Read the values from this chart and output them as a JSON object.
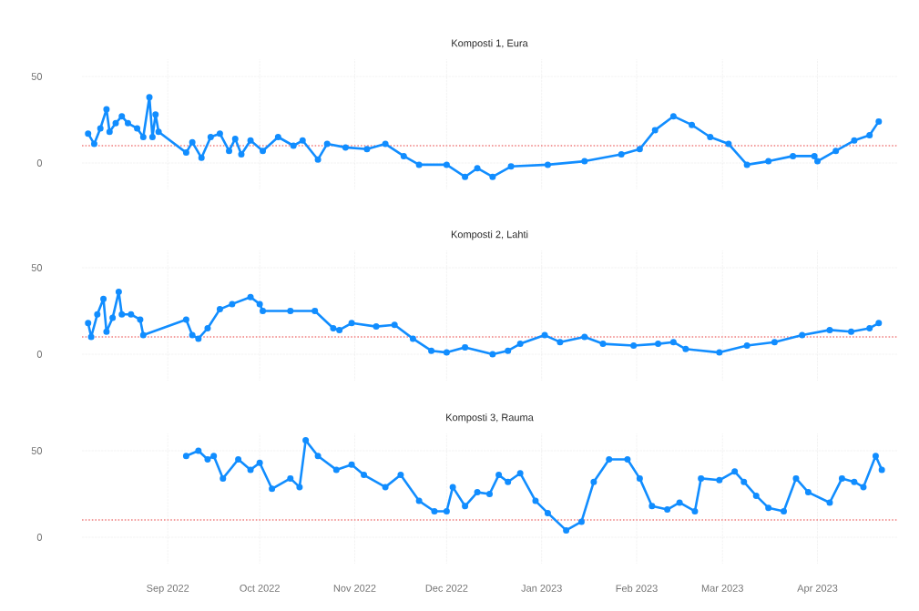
{
  "chart_data": [
    {
      "type": "line",
      "title": "Komposti 1, Eura",
      "color": "#118dff",
      "marker": "circle",
      "line_style": "solid",
      "grid": true,
      "tick_labels": "y",
      "x": [
        "2022-08-06",
        "2022-08-08",
        "2022-08-10",
        "2022-08-12",
        "2022-08-13",
        "2022-08-15",
        "2022-08-17",
        "2022-08-19",
        "2022-08-22",
        "2022-08-24",
        "2022-08-26",
        "2022-08-27",
        "2022-08-28",
        "2022-08-29",
        "2022-09-07",
        "2022-09-09",
        "2022-09-12",
        "2022-09-15",
        "2022-09-18",
        "2022-09-21",
        "2022-09-23",
        "2022-09-25",
        "2022-09-28",
        "2022-10-02",
        "2022-10-07",
        "2022-10-12",
        "2022-10-15",
        "2022-10-20",
        "2022-10-23",
        "2022-10-29",
        "2022-11-05",
        "2022-11-11",
        "2022-11-17",
        "2022-11-22",
        "2022-12-01",
        "2022-12-07",
        "2022-12-11",
        "2022-12-16",
        "2022-12-22",
        "2023-01-03",
        "2023-01-15",
        "2023-01-27",
        "2023-02-02",
        "2023-02-07",
        "2023-02-13",
        "2023-02-19",
        "2023-02-25",
        "2023-03-03",
        "2023-03-09",
        "2023-03-16",
        "2023-03-24",
        "2023-03-31",
        "2023-04-01",
        "2023-04-07",
        "2023-04-13",
        "2023-04-18",
        "2023-04-21"
      ],
      "values": [
        17,
        11,
        20,
        31,
        18,
        23,
        27,
        23,
        20,
        15,
        38,
        15,
        28,
        18,
        6,
        12,
        3,
        15,
        17,
        7,
        14,
        5,
        13,
        7,
        15,
        10,
        13,
        2,
        11,
        9,
        8,
        11,
        4,
        -1,
        -1,
        -8,
        -3,
        -8,
        -2,
        -1,
        1,
        5,
        8,
        19,
        27,
        22,
        15,
        11,
        -1,
        1,
        4,
        4,
        1,
        7,
        13,
        16,
        24
      ],
      "xlim": [
        "2022-08-04",
        "2023-04-27"
      ],
      "ylim": [
        -15,
        60
      ],
      "yticks": [
        0,
        50
      ],
      "xticks": [
        {
          "value": "2022-09-01",
          "label": null
        },
        {
          "value": "2022-10-01",
          "label": null
        },
        {
          "value": "2022-11-01",
          "label": null
        },
        {
          "value": "2022-12-01",
          "label": null
        },
        {
          "value": "2023-01-01",
          "label": null
        },
        {
          "value": "2023-02-01",
          "label": null
        },
        {
          "value": "2023-03-01",
          "label": null
        },
        {
          "value": "2023-04-01",
          "label": null
        }
      ],
      "ref_lines": [
        {
          "axis": "y",
          "value": 10,
          "color": "#f08080",
          "line_style": "dotted"
        }
      ]
    },
    {
      "type": "line",
      "title": "Komposti 2, Lahti",
      "color": "#118dff",
      "marker": "circle",
      "line_style": "solid",
      "grid": true,
      "tick_labels": "y",
      "x": [
        "2022-08-06",
        "2022-08-07",
        "2022-08-09",
        "2022-08-11",
        "2022-08-12",
        "2022-08-14",
        "2022-08-16",
        "2022-08-17",
        "2022-08-20",
        "2022-08-23",
        "2022-08-24",
        "2022-09-07",
        "2022-09-09",
        "2022-09-11",
        "2022-09-14",
        "2022-09-18",
        "2022-09-22",
        "2022-09-28",
        "2022-10-01",
        "2022-10-02",
        "2022-10-11",
        "2022-10-19",
        "2022-10-25",
        "2022-10-27",
        "2022-10-31",
        "2022-11-08",
        "2022-11-14",
        "2022-11-20",
        "2022-11-26",
        "2022-12-01",
        "2022-12-07",
        "2022-12-16",
        "2022-12-21",
        "2022-12-25",
        "2023-01-02",
        "2023-01-07",
        "2023-01-15",
        "2023-01-21",
        "2023-01-31",
        "2023-02-08",
        "2023-02-13",
        "2023-02-17",
        "2023-02-28",
        "2023-03-09",
        "2023-03-18",
        "2023-03-27",
        "2023-04-05",
        "2023-04-12",
        "2023-04-18",
        "2023-04-21"
      ],
      "values": [
        18,
        10,
        23,
        32,
        13,
        21,
        36,
        23,
        23,
        20,
        11,
        20,
        11,
        9,
        15,
        26,
        29,
        33,
        29,
        25,
        25,
        25,
        15,
        14,
        18,
        16,
        17,
        9,
        2,
        1,
        4,
        0,
        2,
        6,
        11,
        7,
        10,
        6,
        5,
        6,
        7,
        3,
        1,
        5,
        7,
        11,
        14,
        13,
        15,
        18
      ],
      "xlim": [
        "2022-08-04",
        "2023-04-27"
      ],
      "ylim": [
        -15,
        60
      ],
      "yticks": [
        0,
        50
      ],
      "xticks": [
        {
          "value": "2022-09-01",
          "label": null
        },
        {
          "value": "2022-10-01",
          "label": null
        },
        {
          "value": "2022-11-01",
          "label": null
        },
        {
          "value": "2022-12-01",
          "label": null
        },
        {
          "value": "2023-01-01",
          "label": null
        },
        {
          "value": "2023-02-01",
          "label": null
        },
        {
          "value": "2023-03-01",
          "label": null
        },
        {
          "value": "2023-04-01",
          "label": null
        }
      ],
      "ref_lines": [
        {
          "axis": "y",
          "value": 10,
          "color": "#f08080",
          "line_style": "dotted"
        }
      ]
    },
    {
      "type": "line",
      "title": "Komposti 3, Rauma",
      "color": "#118dff",
      "marker": "circle",
      "line_style": "solid",
      "grid": true,
      "x": [
        "2022-09-07",
        "2022-09-11",
        "2022-09-14",
        "2022-09-16",
        "2022-09-19",
        "2022-09-24",
        "2022-09-28",
        "2022-10-01",
        "2022-10-05",
        "2022-10-11",
        "2022-10-14",
        "2022-10-16",
        "2022-10-20",
        "2022-10-26",
        "2022-10-31",
        "2022-11-04",
        "2022-11-11",
        "2022-11-16",
        "2022-11-22",
        "2022-11-27",
        "2022-12-01",
        "2022-12-03",
        "2022-12-07",
        "2022-12-11",
        "2022-12-15",
        "2022-12-18",
        "2022-12-21",
        "2022-12-25",
        "2022-12-30",
        "2023-01-03",
        "2023-01-09",
        "2023-01-14",
        "2023-01-18",
        "2023-01-23",
        "2023-01-29",
        "2023-02-02",
        "2023-02-06",
        "2023-02-11",
        "2023-02-15",
        "2023-02-20",
        "2023-02-22",
        "2023-02-28",
        "2023-03-05",
        "2023-03-08",
        "2023-03-12",
        "2023-03-16",
        "2023-03-21",
        "2023-03-25",
        "2023-03-29",
        "2023-04-05",
        "2023-04-09",
        "2023-04-13",
        "2023-04-16",
        "2023-04-20",
        "2023-04-22"
      ],
      "values": [
        47,
        50,
        45,
        47,
        34,
        45,
        39,
        43,
        28,
        34,
        29,
        56,
        47,
        39,
        42,
        36,
        29,
        36,
        21,
        15,
        15,
        29,
        18,
        26,
        25,
        36,
        32,
        37,
        21,
        14,
        4,
        9,
        32,
        45,
        45,
        34,
        18,
        16,
        20,
        15,
        34,
        33,
        38,
        32,
        24,
        17,
        15,
        34,
        26,
        20,
        34,
        32,
        29,
        47,
        39
      ],
      "xlim": [
        "2022-08-04",
        "2023-04-27"
      ],
      "ylim": [
        -15,
        60
      ],
      "yticks": [
        0,
        50
      ],
      "xticks": [
        {
          "value": "2022-09-01",
          "label": "Sep 2022"
        },
        {
          "value": "2022-10-01",
          "label": "Oct 2022"
        },
        {
          "value": "2022-11-01",
          "label": "Nov 2022"
        },
        {
          "value": "2022-12-01",
          "label": "Dec 2022"
        },
        {
          "value": "2023-01-01",
          "label": "Jan 2023"
        },
        {
          "value": "2023-02-01",
          "label": "Feb 2023"
        },
        {
          "value": "2023-03-01",
          "label": "Mar 2023"
        },
        {
          "value": "2023-04-01",
          "label": "Apr 2023"
        }
      ],
      "ref_lines": [
        {
          "axis": "y",
          "value": 10,
          "color": "#f08080",
          "line_style": "dotted"
        }
      ]
    }
  ]
}
